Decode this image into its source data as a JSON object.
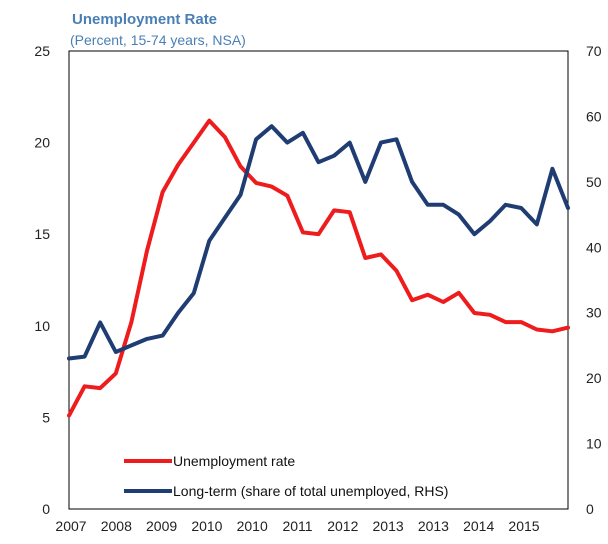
{
  "chart_data": {
    "type": "line",
    "title": "Unemployment Rate",
    "subtitle": "(Percent, 15-74 years, NSA)",
    "x_tick_labels": [
      "2007",
      "2008",
      "2009",
      "2010",
      "2010",
      "2011",
      "2012",
      "2013",
      "2013",
      "2014",
      "2015"
    ],
    "y_left": {
      "min": 0,
      "max": 25,
      "ticks": [
        0,
        5,
        10,
        15,
        20,
        25
      ]
    },
    "y_right": {
      "min": 0,
      "max": 70,
      "ticks": [
        0,
        10,
        20,
        30,
        40,
        50,
        60,
        70
      ]
    },
    "legend_position": "bottom-center",
    "grid": false,
    "series": [
      {
        "name": "Unemployment rate",
        "axis": "left",
        "color": "#ee1c1c",
        "values": [
          5.1,
          6.7,
          6.6,
          7.4,
          10.2,
          14.1,
          17.3,
          18.8,
          20.0,
          21.2,
          20.3,
          18.7,
          17.8,
          17.6,
          17.1,
          15.1,
          15.0,
          16.3,
          16.2,
          13.7,
          13.9,
          13.0,
          11.4,
          11.7,
          11.3,
          11.8,
          10.7,
          10.6,
          10.2,
          10.2,
          9.8,
          9.7,
          9.9
        ]
      },
      {
        "name": "Long-term (share of total unemployed, RHS)",
        "axis": "right",
        "color": "#1f3d73",
        "values": [
          23.0,
          23.3,
          28.5,
          24.0,
          25.0,
          26.0,
          26.5,
          30.0,
          33.0,
          41.0,
          44.5,
          48.0,
          56.5,
          58.5,
          56.0,
          57.5,
          53.0,
          54.0,
          56.0,
          50.0,
          56.0,
          56.5,
          50.0,
          46.5,
          46.5,
          45.0,
          42.0,
          44.0,
          46.5,
          46.0,
          43.5,
          52.0,
          46.0
        ]
      }
    ]
  }
}
